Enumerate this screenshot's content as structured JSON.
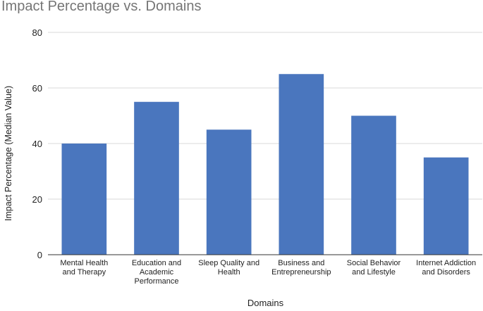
{
  "chart_data": {
    "type": "bar",
    "title": "Impact Percentage vs. Domains",
    "xlabel": "Domains",
    "ylabel": "Impact Percentage (Median Value)",
    "categories": [
      [
        "Mental Health",
        "and Therapy"
      ],
      [
        "Education and",
        "Academic",
        "Performance"
      ],
      [
        "Sleep Quality and",
        "Health"
      ],
      [
        "Business and",
        "Entrepreneurship"
      ],
      [
        "Social Behavior",
        "and Lifestyle"
      ],
      [
        "Internet Addiction",
        "and Disorders"
      ]
    ],
    "values": [
      40,
      55,
      45,
      65,
      50,
      35
    ],
    "ylim": [
      0,
      80
    ],
    "yticks": [
      0,
      20,
      40,
      60,
      80
    ],
    "grid": true,
    "legend": "none",
    "colors": {
      "bar": "#4a76be",
      "grid": "#d9d9d9",
      "axis": "#333333",
      "title": "#757575"
    }
  }
}
